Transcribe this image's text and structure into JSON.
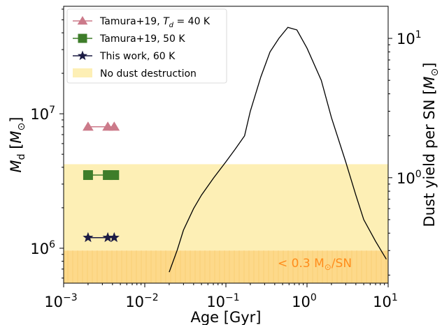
{
  "chart_data": {
    "type": "scatter",
    "title": "",
    "xlabel": "Age [Gyr]",
    "ylabel_left": "M_d [M_⊙]",
    "ylabel_right": "Dust yield per SN [M_⊙]",
    "x_scale": "log",
    "y_scale_left": "log",
    "y_scale_right": "log",
    "xlim": [
      0.001,
      10
    ],
    "ylim_left": [
      550000,
      63000000
    ],
    "ylim_right": [
      0.175,
      17
    ],
    "x_ticks": [
      {
        "value": 0.001,
        "base": "10",
        "exp": "−3"
      },
      {
        "value": 0.01,
        "base": "10",
        "exp": "−2"
      },
      {
        "value": 0.1,
        "base": "10",
        "exp": "−1"
      },
      {
        "value": 1,
        "base": "10",
        "exp": "0"
      },
      {
        "value": 10,
        "base": "10",
        "exp": "1"
      }
    ],
    "y_ticks_left": [
      {
        "value": 1000000,
        "base": "10",
        "exp": "6"
      },
      {
        "value": 10000000,
        "base": "10",
        "exp": "7"
      }
    ],
    "y_ticks_right": [
      {
        "value": 1,
        "base": "10",
        "exp": "0"
      },
      {
        "value": 10,
        "base": "10",
        "exp": "1"
      }
    ],
    "series": [
      {
        "name": "Tamura+19, T_d = 40 K",
        "legend_main": "Tamura+19, ",
        "legend_var": "T",
        "legend_sub": "d",
        "legend_rest": " = 40 K",
        "marker": "triangle",
        "color": "#cc7a8a",
        "axis": "left",
        "x": [
          0.002,
          0.0035,
          0.0042
        ],
        "y": [
          8000000,
          8000000,
          8000000
        ]
      },
      {
        "name": "Tamura+19, 50 K",
        "legend_main": "Tamura+19, 50 K",
        "marker": "square",
        "color": "#3e7d2a",
        "axis": "left",
        "x": [
          0.002,
          0.0035,
          0.0042
        ],
        "y": [
          3500000,
          3500000,
          3500000
        ]
      },
      {
        "name": "This work, 60 K",
        "legend_main": "This work, 60 K",
        "marker": "star",
        "color": "#1c1c44",
        "axis": "left",
        "x": [
          0.002,
          0.0035,
          0.0042
        ],
        "y": [
          1200000,
          1200000,
          1200000
        ]
      },
      {
        "name": "dust yield per SN",
        "marker": "line",
        "color": "#000000",
        "axis": "right",
        "x": [
          0.02,
          0.025,
          0.03,
          0.04,
          0.05,
          0.07,
          0.1,
          0.13,
          0.17,
          0.2,
          0.27,
          0.35,
          0.45,
          0.58,
          0.75,
          1.0,
          1.5,
          2.0,
          3.0,
          4.0,
          5.0,
          7.0,
          9.5
        ],
        "y": [
          0.21,
          0.3,
          0.42,
          0.6,
          0.75,
          0.99,
          1.3,
          1.6,
          2.0,
          3.0,
          5.3,
          8.0,
          10.0,
          12.0,
          11.5,
          8.5,
          5.0,
          2.7,
          1.3,
          0.75,
          0.5,
          0.35,
          0.26
        ]
      }
    ],
    "bands": [
      {
        "name": "No dust destruction",
        "color": "#fdefb5",
        "y_from_right": 0.3,
        "y_to_right": 1.25
      },
      {
        "name": "< 0.3 M_⊙/SN",
        "color": "#fdd98a",
        "y_from_right": 0.175,
        "y_to_right": 0.3
      }
    ],
    "annotation": {
      "prefix": "< 0.3 M",
      "sub": "⊙",
      "suffix": "/SN",
      "color": "#ff8c1a"
    },
    "legend_label_band": "No dust destruction",
    "legend_position": "upper left"
  }
}
